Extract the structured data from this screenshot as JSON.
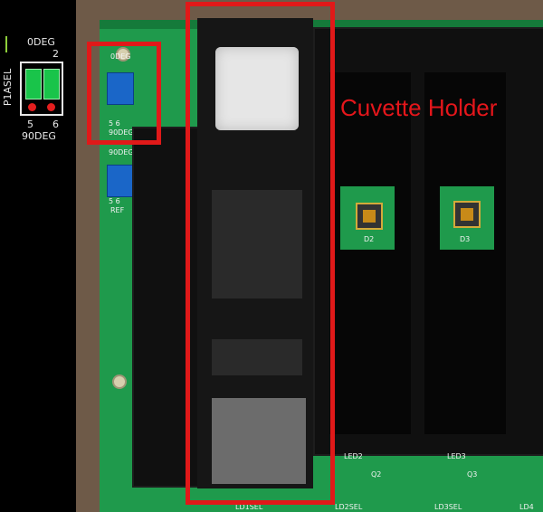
{
  "inset": {
    "top_label": "0DEG",
    "top_pin": "2",
    "side_label": "P1ASEL",
    "pin_left": "5",
    "pin_right": "6",
    "bottom_label": "90DEG"
  },
  "board_silkscreen": {
    "deg0": "0DEG",
    "deg90": "90DEG",
    "deg90_b": "90DEG",
    "pins_a": "5  6",
    "pins_b": "5  6",
    "ref": "REF",
    "d2": "D2",
    "d3": "D3",
    "q2": "Q2",
    "q3": "Q3",
    "ld1sel": "LD1SEL",
    "ld2sel": "LD2SEL",
    "ld3sel": "LD3SEL",
    "ld2": "LED2",
    "ld3": "LED3",
    "ld4": "LD4"
  },
  "annotation": {
    "cuvette_label": "Cuvette Holder",
    "color": "#e01919"
  }
}
